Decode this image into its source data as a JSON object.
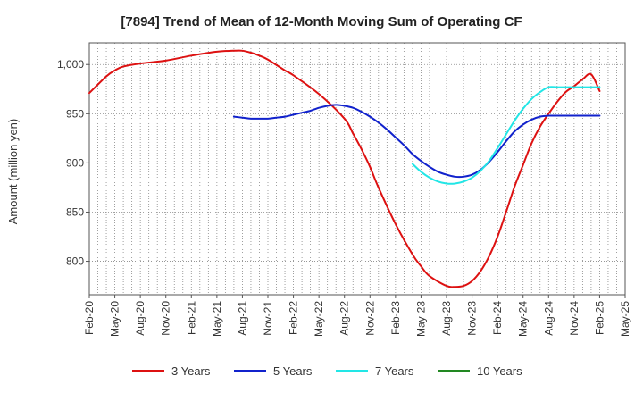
{
  "chart_data": {
    "type": "line",
    "title": "[7894]  Trend of Mean of 12-Month Moving Sum of Operating CF",
    "xlabel": "",
    "ylabel": "Amount (million yen)",
    "ylim": [
      766,
      1022
    ],
    "yticks": [
      800,
      850,
      900,
      950,
      1000
    ],
    "ytick_labels": [
      "800",
      "850",
      "900",
      "950",
      "1,000"
    ],
    "x_months_range": [
      0,
      63
    ],
    "xticks": [
      0,
      3,
      6,
      9,
      12,
      15,
      18,
      21,
      24,
      27,
      30,
      33,
      36,
      39,
      42,
      45,
      48,
      51,
      54,
      57,
      60,
      63
    ],
    "xtick_labels": [
      "Feb-20",
      "May-20",
      "Aug-20",
      "Nov-20",
      "Feb-21",
      "May-21",
      "Aug-21",
      "Nov-21",
      "Feb-22",
      "May-22",
      "Aug-22",
      "Nov-22",
      "Feb-23",
      "May-23",
      "Aug-23",
      "Nov-23",
      "Feb-24",
      "May-24",
      "Aug-24",
      "Nov-24",
      "Feb-25",
      "May-25"
    ],
    "grid": true,
    "legend_position": "bottom",
    "series": [
      {
        "name": "3 Years",
        "color": "#dd1111",
        "x": [
          0,
          2,
          3,
          4,
          6,
          9,
          12,
          15,
          17,
          18,
          19,
          20,
          21,
          23,
          24,
          27,
          30,
          31,
          32,
          33,
          34,
          36,
          38,
          39,
          40,
          42,
          43,
          44,
          45,
          46,
          47,
          48,
          49,
          50,
          51,
          52,
          53,
          54,
          55,
          56,
          57,
          58,
          59,
          60
        ],
        "y": [
          971,
          988,
          994,
          998,
          1001,
          1004,
          1009,
          1013,
          1014,
          1014,
          1012,
          1009,
          1005,
          994,
          989,
          970,
          945,
          930,
          914,
          896,
          875,
          838,
          807,
          795,
          785,
          775,
          774,
          775,
          780,
          790,
          805,
          825,
          850,
          876,
          898,
          920,
          937,
          950,
          962,
          972,
          978,
          985,
          990,
          973
        ]
      },
      {
        "name": "5 Years",
        "color": "#1122cc",
        "x": [
          17,
          18,
          19,
          20,
          21,
          22,
          23,
          24,
          25,
          26,
          27,
          28,
          29,
          30,
          31,
          32,
          33,
          34,
          35,
          36,
          37,
          38,
          39,
          40,
          41,
          42,
          43,
          44,
          45,
          46,
          47,
          48,
          49,
          50,
          51,
          52,
          53,
          54,
          55,
          56,
          57,
          58,
          59,
          60
        ],
        "y": [
          947,
          946,
          945,
          945,
          945,
          946,
          947,
          949,
          951,
          953,
          956,
          958,
          959,
          958,
          956,
          952,
          947,
          941,
          934,
          926,
          918,
          909,
          902,
          896,
          891,
          888,
          886,
          886,
          888,
          893,
          901,
          911,
          922,
          932,
          939,
          944,
          947,
          948,
          948,
          948,
          948,
          948,
          948,
          948
        ]
      },
      {
        "name": "7 Years",
        "color": "#22e6e6",
        "x": [
          38,
          39,
          40,
          41,
          42,
          43,
          44,
          45,
          46,
          47,
          48,
          49,
          50,
          51,
          52,
          53,
          54,
          55,
          56,
          57,
          58,
          59,
          60
        ],
        "y": [
          899,
          891,
          885,
          881,
          879,
          879,
          881,
          885,
          892,
          902,
          915,
          929,
          943,
          955,
          965,
          972,
          977,
          977,
          977,
          977,
          977,
          977,
          977
        ]
      },
      {
        "name": "10 Years",
        "color": "#228822",
        "x": [],
        "y": []
      }
    ]
  }
}
